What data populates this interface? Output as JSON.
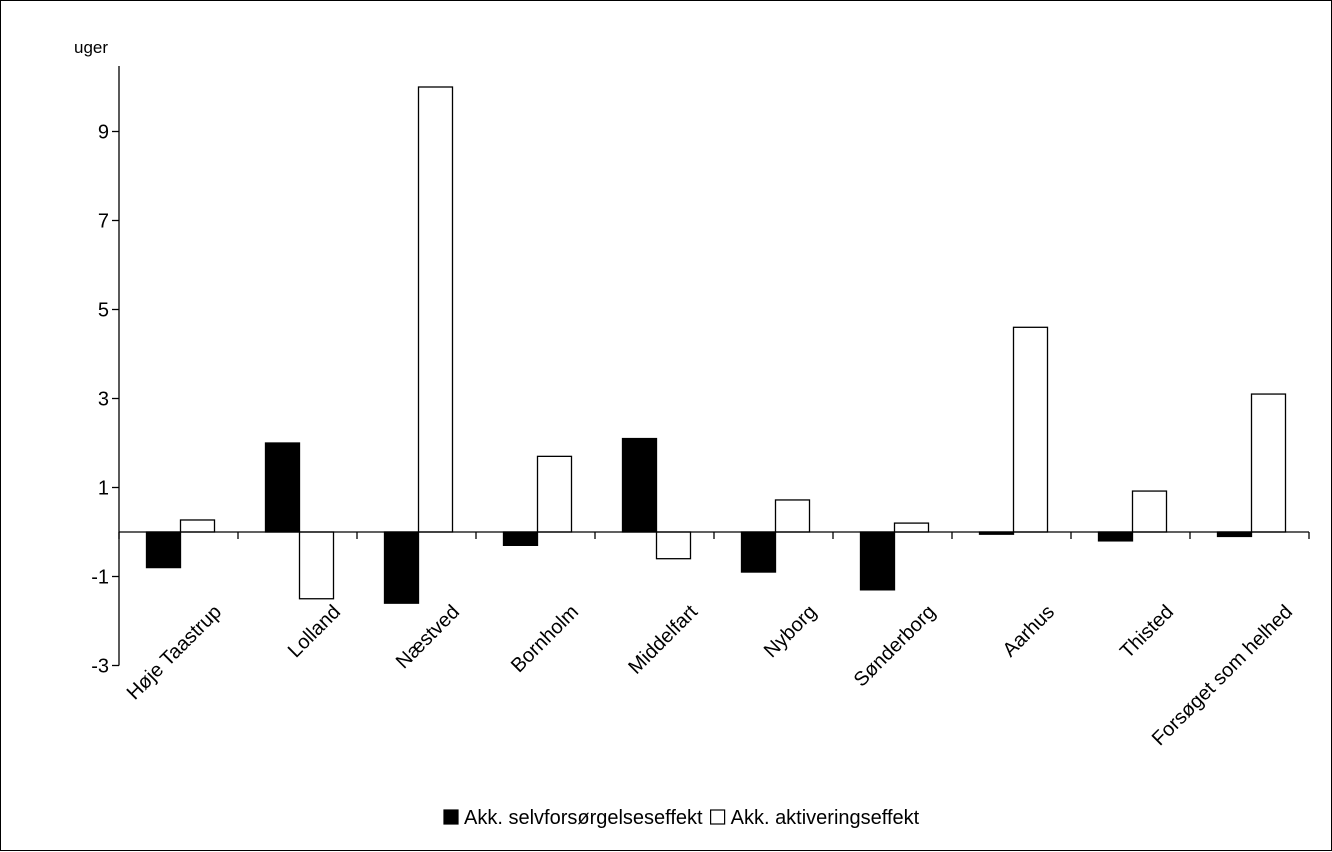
{
  "chart_data": {
    "type": "bar",
    "ylabel": "uger",
    "ylim": [
      -3,
      10.5
    ],
    "yticks": [
      -3,
      -1,
      1,
      3,
      5,
      7,
      9
    ],
    "grid": false,
    "legend_position": "bottom",
    "categories": [
      "Høje Taastrup",
      "Lolland",
      "Næstved",
      "Bornholm",
      "Middelfart",
      "Nyborg",
      "Sønderborg",
      "Aarhus",
      "Thisted",
      "Forsøget som helhed"
    ],
    "series": [
      {
        "name": "Akk. selvforsørgelseseffekt",
        "fill": "#000000",
        "values": [
          -0.8,
          2.0,
          -1.6,
          -0.3,
          2.1,
          -0.9,
          -1.3,
          -0.05,
          -0.2,
          -0.1
        ]
      },
      {
        "name": "Akk. aktiveringseffekt",
        "fill": "#ffffff",
        "values": [
          0.27,
          -1.5,
          10.0,
          1.7,
          -0.6,
          0.72,
          0.2,
          4.6,
          0.92,
          3.1
        ]
      }
    ]
  }
}
